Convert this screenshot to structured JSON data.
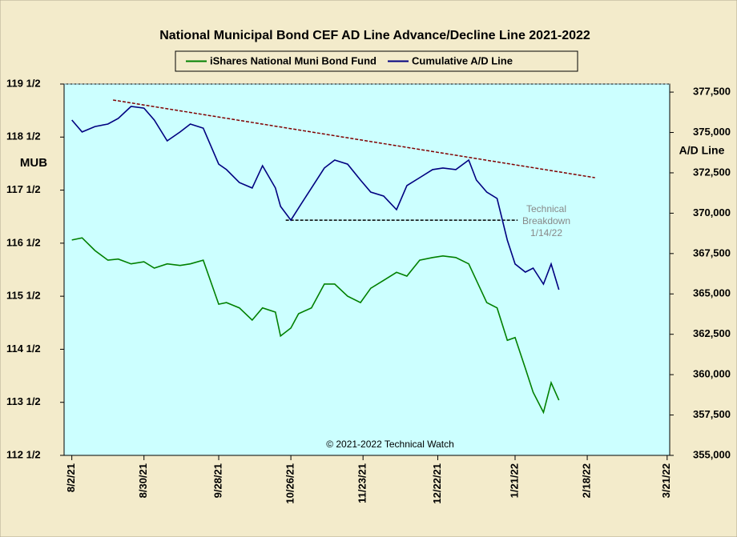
{
  "chart_data": {
    "type": "line",
    "title": "National Municipal Bond CEF AD Line Advance/Decline Line 2021-2022",
    "ylabel": "MUB",
    "y2label": "A/D Line",
    "annotations": [
      {
        "lines": [
          "Technical",
          "Breakdown",
          "1/14/22"
        ]
      },
      {
        "lines": [
          "© 2021-2022 Technical Watch"
        ]
      }
    ],
    "x": [
      "2021-08-02",
      "2021-08-06",
      "2021-08-11",
      "2021-08-16",
      "2021-08-20",
      "2021-08-25",
      "2021-08-30",
      "2021-09-03",
      "2021-09-08",
      "2021-09-13",
      "2021-09-17",
      "2021-09-22",
      "2021-09-28",
      "2021-10-01",
      "2021-10-06",
      "2021-10-11",
      "2021-10-15",
      "2021-10-20",
      "2021-10-22",
      "2021-10-26",
      "2021-10-29",
      "2021-11-03",
      "2021-11-08",
      "2021-11-12",
      "2021-11-17",
      "2021-11-22",
      "2021-11-26",
      "2021-12-01",
      "2021-12-06",
      "2021-12-10",
      "2021-12-15",
      "2021-12-20",
      "2021-12-24",
      "2021-12-29",
      "2022-01-03",
      "2022-01-06",
      "2022-01-10",
      "2022-01-14",
      "2022-01-18",
      "2022-01-21",
      "2022-01-25",
      "2022-01-28",
      "2022-02-01",
      "2022-02-04",
      "2022-02-07"
    ],
    "series": [
      {
        "name": "iShares National Muni Bond Fund",
        "color": "#008000",
        "axis": "y",
        "values": [
          116.56,
          116.6,
          116.36,
          116.18,
          116.2,
          116.11,
          116.15,
          116.03,
          116.11,
          116.08,
          116.11,
          116.18,
          115.35,
          115.38,
          115.28,
          115.05,
          115.28,
          115.2,
          114.75,
          114.9,
          115.17,
          115.28,
          115.73,
          115.73,
          115.5,
          115.38,
          115.65,
          115.8,
          115.95,
          115.88,
          116.18,
          116.23,
          116.26,
          116.23,
          116.11,
          115.8,
          115.38,
          115.28,
          114.67,
          114.72,
          114.14,
          113.69,
          113.31,
          113.87,
          113.54
        ]
      },
      {
        "name": "Cumulative A/D Line",
        "color": "#000080",
        "axis": "y2",
        "values": [
          375770,
          375030,
          375370,
          375520,
          375870,
          376610,
          376510,
          375770,
          374480,
          375030,
          375520,
          375270,
          373040,
          372700,
          371900,
          371560,
          372940,
          371560,
          370420,
          369570,
          370320,
          371560,
          372800,
          373290,
          373040,
          372050,
          371310,
          371060,
          370220,
          371710,
          372200,
          372700,
          372800,
          372700,
          373290,
          372050,
          371310,
          370910,
          368330,
          366850,
          366350,
          366600,
          365610,
          366850,
          365260
        ]
      }
    ],
    "trendlines": [
      {
        "color": "#800000",
        "x": [
          "2021-08-18",
          "2022-02-21"
        ],
        "values": [
          377010,
          372200
        ],
        "axis": "y2"
      },
      {
        "color": "#000000",
        "x": [
          "2021-10-24",
          "2022-01-22"
        ],
        "values": [
          369570,
          369570
        ],
        "axis": "y2"
      }
    ],
    "xlim": [
      "2021-07-30",
      "2022-03-22"
    ],
    "xticks": [
      {
        "value": "2021-08-02",
        "label": "8/2/21"
      },
      {
        "value": "2021-08-30",
        "label": "8/30/21"
      },
      {
        "value": "2021-09-28",
        "label": "9/28/21"
      },
      {
        "value": "2021-10-26",
        "label": "10/26/21"
      },
      {
        "value": "2021-11-23",
        "label": "11/23/21"
      },
      {
        "value": "2021-12-22",
        "label": "12/22/21"
      },
      {
        "value": "2022-01-21",
        "label": "1/21/22"
      },
      {
        "value": "2022-02-18",
        "label": "2/18/22"
      },
      {
        "value": "2022-03-21",
        "label": "3/21/22"
      }
    ],
    "ylim": [
      112.5,
      119.5
    ],
    "yticks": [
      {
        "value": 112.5,
        "label": "112 1/2"
      },
      {
        "value": 113.5,
        "label": "113 1/2"
      },
      {
        "value": 114.5,
        "label": "114 1/2"
      },
      {
        "value": 115.5,
        "label": "115 1/2"
      },
      {
        "value": 116.5,
        "label": "116 1/2"
      },
      {
        "value": 117.5,
        "label": "117 1/2"
      },
      {
        "value": 118.5,
        "label": "118 1/2"
      },
      {
        "value": 119.5,
        "label": "119 1/2"
      }
    ],
    "y2lim": [
      355000,
      378000
    ],
    "y2ticks": [
      {
        "value": 355000,
        "label": "355,000"
      },
      {
        "value": 357500,
        "label": "357,500"
      },
      {
        "value": 360000,
        "label": "360,000"
      },
      {
        "value": 362500,
        "label": "362,500"
      },
      {
        "value": 365000,
        "label": "365,000"
      },
      {
        "value": 367500,
        "label": "367,500"
      },
      {
        "value": 370000,
        "label": "370,000"
      },
      {
        "value": 372500,
        "label": "372,500"
      },
      {
        "value": 375000,
        "label": "375,000"
      },
      {
        "value": 377500,
        "label": "377,500"
      }
    ],
    "legend": "top",
    "background": "#ccffff"
  }
}
